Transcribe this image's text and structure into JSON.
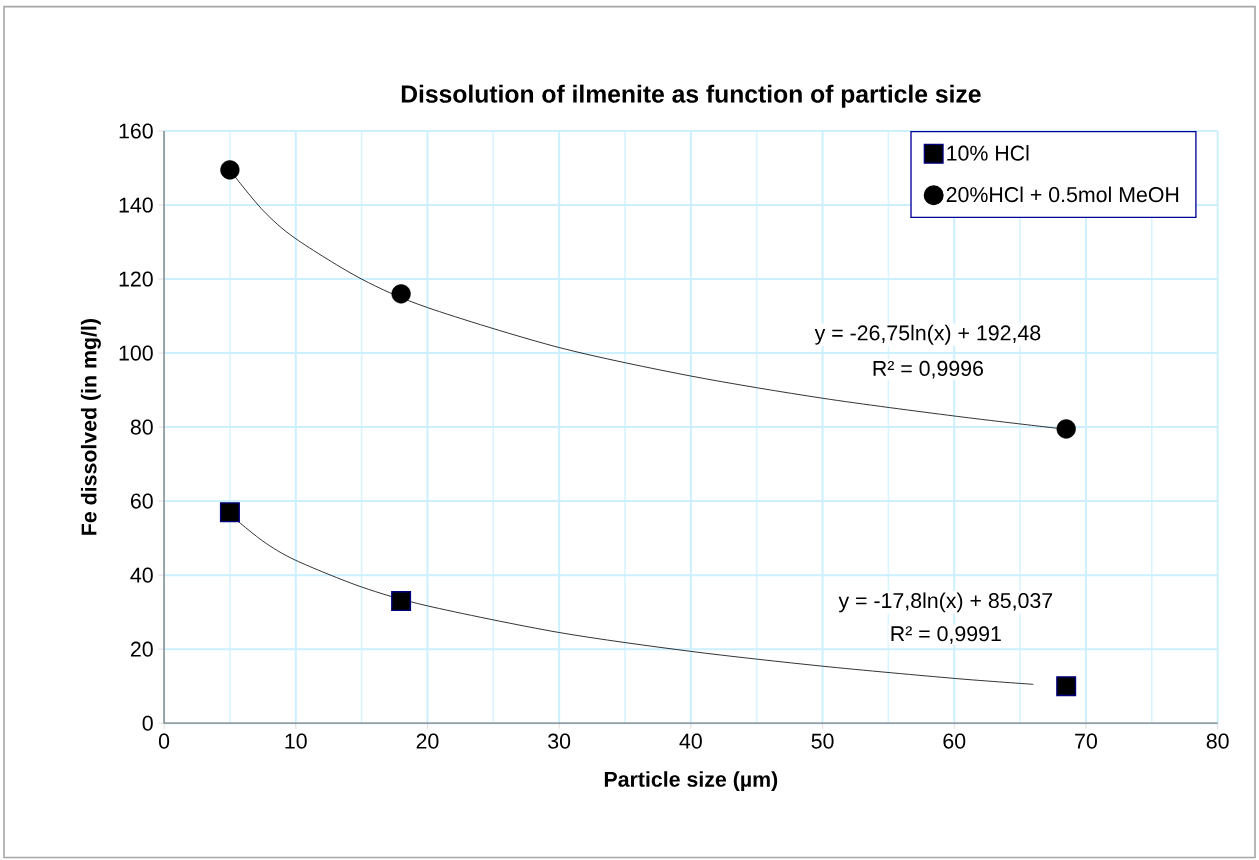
{
  "chart_data": {
    "type": "scatter",
    "title": "Dissolution of ilmenite as function of particle size",
    "xlabel": "Particle size (µm)",
    "ylabel": "Fe dissolved (in mg/l)",
    "xlim": [
      0,
      80
    ],
    "xticks": [
      0,
      10,
      20,
      30,
      40,
      50,
      60,
      70,
      80
    ],
    "ylim": [
      0,
      160
    ],
    "yticks": [
      0,
      20,
      40,
      60,
      80,
      100,
      120,
      140,
      160
    ],
    "grid": true,
    "legend": "top right",
    "series": [
      {
        "name": "10% HCl",
        "color": "#000000",
        "marker": "square",
        "x": [
          5,
          18,
          68.5
        ],
        "values": [
          57,
          33,
          10
        ]
      },
      {
        "name": "20%HCl + 0.5mol MeOH",
        "color": "#000000",
        "marker": "circle",
        "x": [
          5,
          18,
          68.5
        ],
        "values": [
          149.5,
          116,
          79.5
        ]
      },
      {
        "type": "line",
        "color": "#000000",
        "marker": "none",
        "line_style": "solid",
        "x": [
          5,
          7.5,
          10,
          15,
          20,
          30,
          40,
          50,
          60,
          66
        ],
        "values": [
          56.4,
          49.2,
          44,
          36.8,
          31.7,
          24.5,
          19.4,
          15.4,
          12.1,
          10.5
        ]
      },
      {
        "type": "line",
        "color": "#000000",
        "marker": "none",
        "line_style": "solid",
        "x": [
          5,
          7.5,
          10,
          15,
          20,
          30,
          40,
          50,
          60,
          68.5
        ],
        "values": [
          149.4,
          138.6,
          130.9,
          120,
          112.3,
          101.5,
          93.8,
          87.8,
          83,
          79.4
        ]
      }
    ],
    "annotations": [
      "y = -26,75ln(x) + 192,48",
      "R² = 0,9996",
      "y = -17,8ln(x) + 85,037",
      "R² = 0,9991"
    ]
  }
}
